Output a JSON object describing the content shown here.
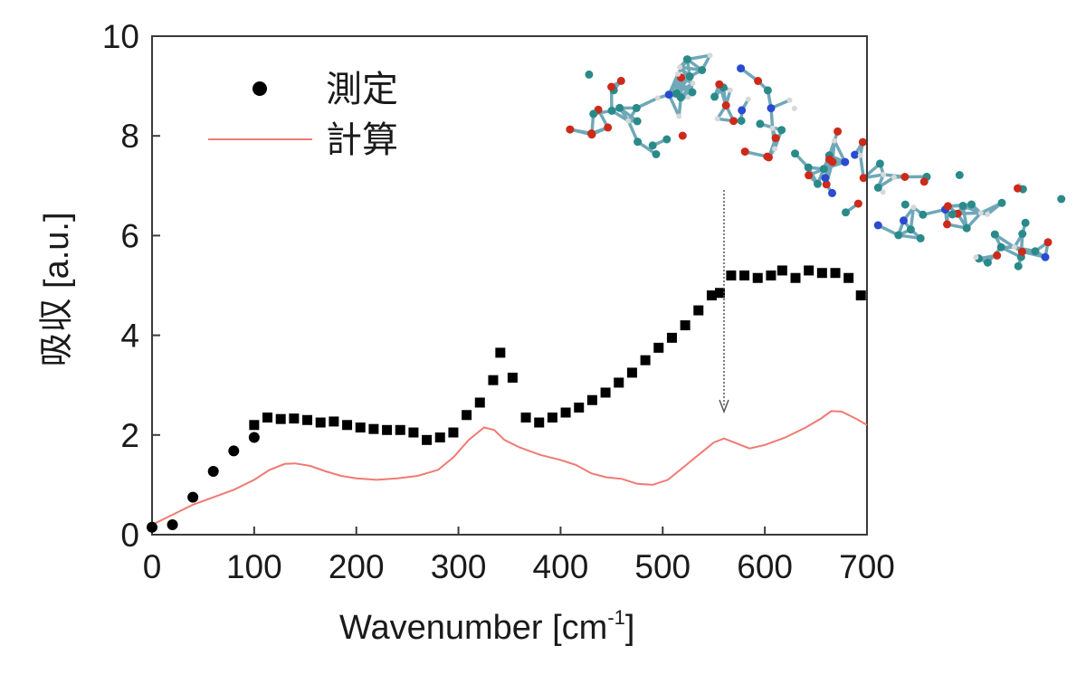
{
  "chart_data": {
    "type": "scatter",
    "xlabel": "Wavenumber [cm",
    "xlabel_sup": "-1",
    "xlabel_end": "]",
    "ylabel": "吸収 [a.u.]",
    "xlim": [
      0,
      700
    ],
    "ylim": [
      0,
      10
    ],
    "x_ticks": [
      "0",
      "100",
      "200",
      "300",
      "400",
      "500",
      "600",
      "700"
    ],
    "y_ticks": [
      "0",
      "2",
      "4",
      "6",
      "8",
      "10"
    ],
    "grid": false,
    "legend_position": "top-left",
    "legend": [
      "測定",
      "計算"
    ],
    "annotation": "downward arrow at about 560 cm-1 from the molecular structure to the calculated spectrum",
    "inset_image": "ball-and-stick molecular structure",
    "series": [
      {
        "name": "測定",
        "marker": "circle",
        "color": "#000000",
        "points": [
          [
            0,
            0.15
          ],
          [
            20,
            0.2
          ],
          [
            40,
            0.75
          ],
          [
            60,
            1.27
          ],
          [
            80,
            1.68
          ],
          [
            100,
            1.95
          ]
        ]
      },
      {
        "name": "測定",
        "marker": "square",
        "color": "#000000",
        "points": [
          [
            100,
            2.2
          ],
          [
            113,
            2.35
          ],
          [
            126,
            2.32
          ],
          [
            139,
            2.33
          ],
          [
            152,
            2.3
          ],
          [
            165,
            2.25
          ],
          [
            178,
            2.27
          ],
          [
            191,
            2.2
          ],
          [
            204,
            2.15
          ],
          [
            217,
            2.12
          ],
          [
            230,
            2.1
          ],
          [
            243,
            2.1
          ],
          [
            256,
            2.05
          ],
          [
            269,
            1.9
          ],
          [
            282,
            1.95
          ],
          [
            295,
            2.05
          ],
          [
            308,
            2.4
          ],
          [
            321,
            2.65
          ],
          [
            334,
            3.1
          ],
          [
            341,
            3.65
          ],
          [
            353,
            3.15
          ],
          [
            366,
            2.35
          ],
          [
            379,
            2.25
          ],
          [
            392,
            2.35
          ],
          [
            405,
            2.45
          ],
          [
            418,
            2.55
          ],
          [
            431,
            2.7
          ],
          [
            444,
            2.85
          ],
          [
            457,
            3.05
          ],
          [
            470,
            3.25
          ],
          [
            483,
            3.5
          ],
          [
            496,
            3.75
          ],
          [
            509,
            3.95
          ],
          [
            522,
            4.2
          ],
          [
            535,
            4.5
          ],
          [
            548,
            4.8
          ],
          [
            556,
            4.85
          ],
          [
            567,
            5.2
          ],
          [
            580,
            5.2
          ],
          [
            593,
            5.15
          ],
          [
            606,
            5.2
          ],
          [
            617,
            5.3
          ],
          [
            630,
            5.15
          ],
          [
            643,
            5.3
          ],
          [
            656,
            5.25
          ],
          [
            669,
            5.25
          ],
          [
            682,
            5.15
          ],
          [
            694,
            4.8
          ]
        ]
      },
      {
        "name": "計算",
        "type": "line",
        "color": "#f07a72",
        "points": [
          [
            0,
            0.2
          ],
          [
            20,
            0.4
          ],
          [
            40,
            0.6
          ],
          [
            60,
            0.75
          ],
          [
            80,
            0.9
          ],
          [
            100,
            1.1
          ],
          [
            115,
            1.3
          ],
          [
            130,
            1.42
          ],
          [
            140,
            1.43
          ],
          [
            155,
            1.38
          ],
          [
            170,
            1.27
          ],
          [
            185,
            1.18
          ],
          [
            200,
            1.13
          ],
          [
            220,
            1.1
          ],
          [
            240,
            1.13
          ],
          [
            260,
            1.18
          ],
          [
            280,
            1.3
          ],
          [
            295,
            1.55
          ],
          [
            310,
            1.9
          ],
          [
            325,
            2.15
          ],
          [
            335,
            2.1
          ],
          [
            345,
            1.9
          ],
          [
            360,
            1.75
          ],
          [
            380,
            1.6
          ],
          [
            400,
            1.5
          ],
          [
            415,
            1.4
          ],
          [
            430,
            1.23
          ],
          [
            445,
            1.15
          ],
          [
            460,
            1.12
          ],
          [
            475,
            1.02
          ],
          [
            490,
            1.0
          ],
          [
            505,
            1.1
          ],
          [
            520,
            1.35
          ],
          [
            535,
            1.6
          ],
          [
            550,
            1.85
          ],
          [
            560,
            1.93
          ],
          [
            570,
            1.85
          ],
          [
            585,
            1.73
          ],
          [
            600,
            1.8
          ],
          [
            620,
            1.95
          ],
          [
            640,
            2.15
          ],
          [
            655,
            2.33
          ],
          [
            665,
            2.48
          ],
          [
            675,
            2.47
          ],
          [
            690,
            2.32
          ],
          [
            700,
            2.2
          ]
        ]
      }
    ]
  }
}
